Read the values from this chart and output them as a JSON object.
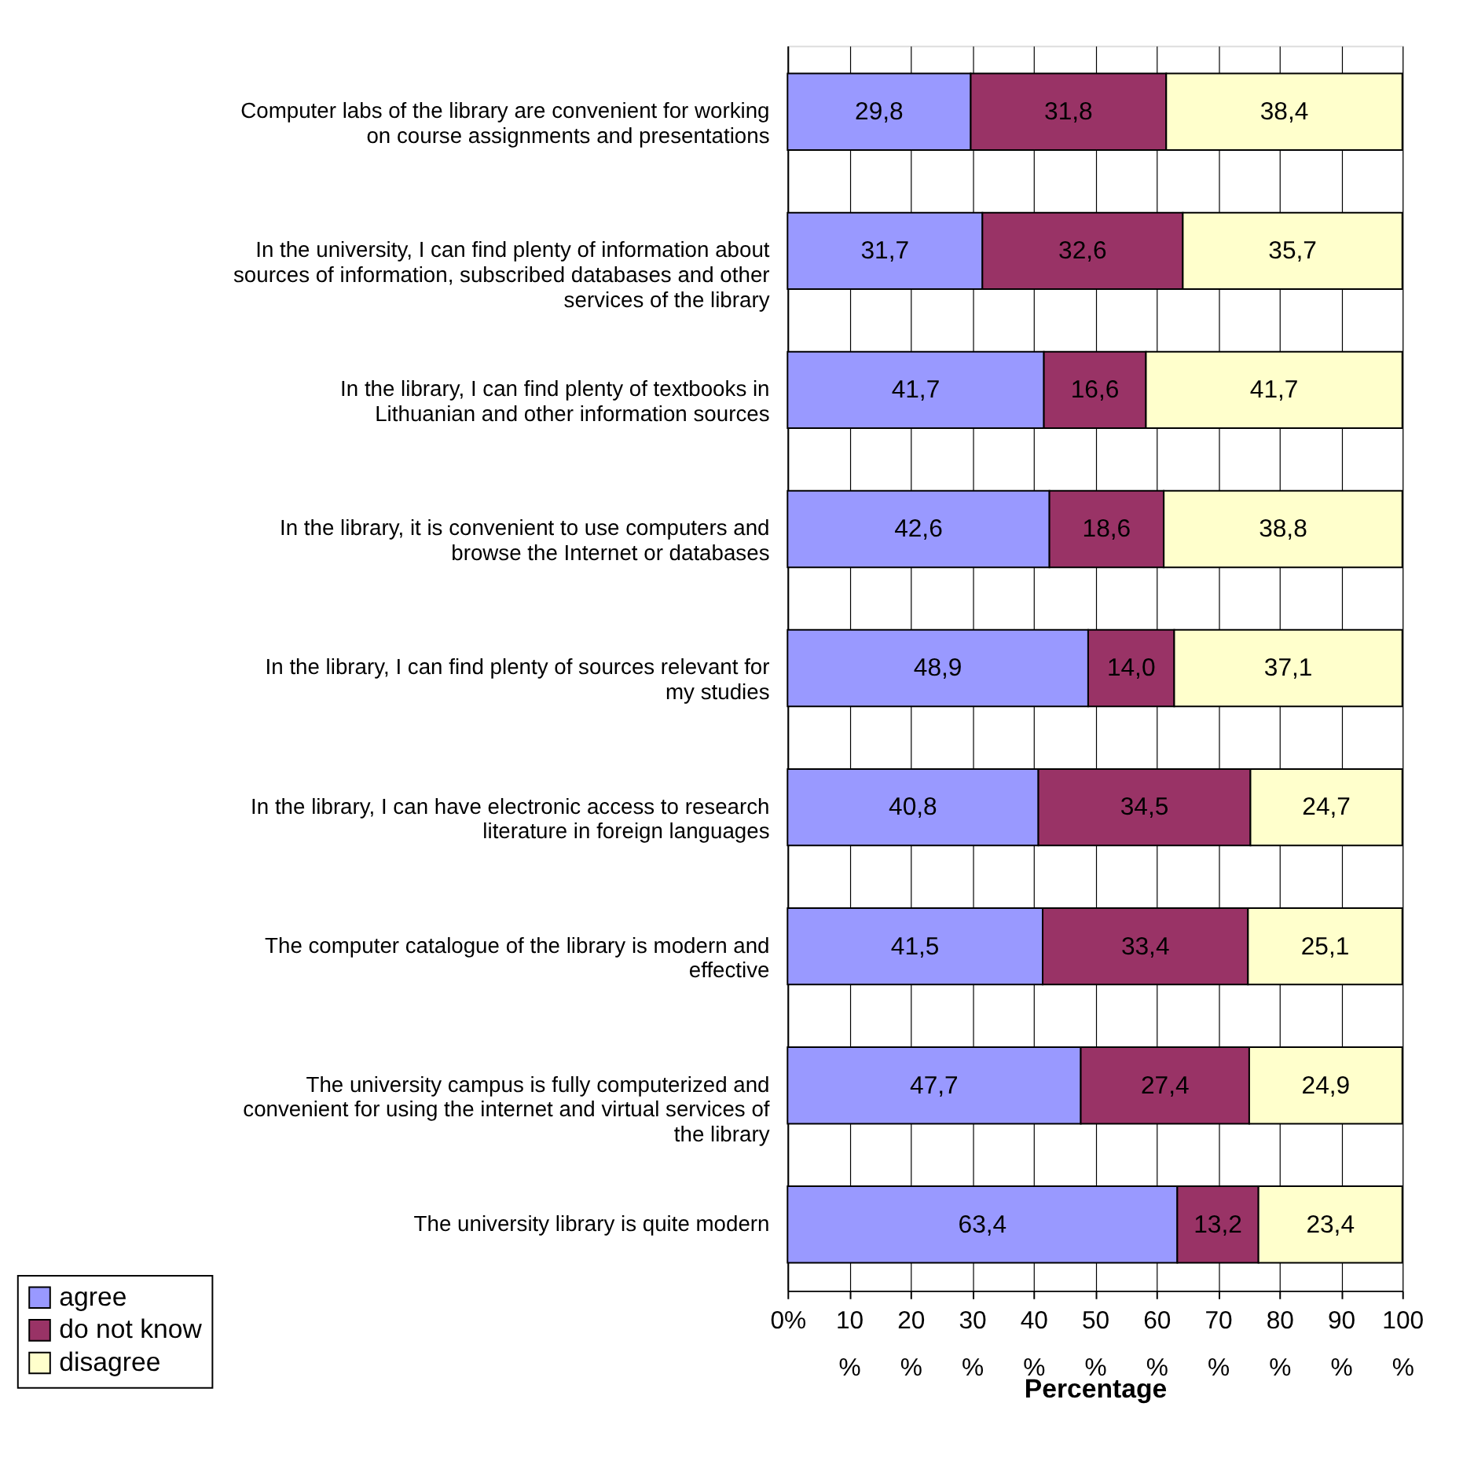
{
  "chart_data": {
    "type": "bar",
    "orientation": "horizontal",
    "stacked": true,
    "xlabel": "Percentage",
    "categories": [
      "Computer labs of the library are convenient for working on course assignments and presentations",
      "In the university, I can find plenty of information about sources of information, subscribed databases and other services of the library",
      "In the library, I can find plenty of textbooks in Lithuanian and other information sources",
      "In the library, it is convenient to use computers and browse the Internet or databases",
      "In the library, I can find plenty of sources relevant for my studies",
      "In the library, I can have electronic access to research literature in foreign languages",
      "The computer catalogue of the library is modern and effective",
      "The university campus is fully computerized and convenient for using the internet and virtual services of the library",
      "The university library is quite modern"
    ],
    "series": [
      {
        "name": "agree",
        "color": "#9999ff",
        "values": [
          29.8,
          31.7,
          41.7,
          42.6,
          48.9,
          40.8,
          41.5,
          47.7,
          63.4
        ],
        "value_labels": [
          "29,8",
          "31,7",
          "41,7",
          "42,6",
          "48,9",
          "40,8",
          "41,5",
          "47,7",
          "63,4"
        ]
      },
      {
        "name": "do not know",
        "color": "#993366",
        "values": [
          31.8,
          32.6,
          16.6,
          18.6,
          14.0,
          34.5,
          33.4,
          27.4,
          13.2
        ],
        "value_labels": [
          "31,8",
          "32,6",
          "16,6",
          "18,6",
          "14,0",
          "34,5",
          "33,4",
          "27,4",
          "13,2"
        ]
      },
      {
        "name": "disagree",
        "color": "#ffffcc",
        "values": [
          38.4,
          35.7,
          41.7,
          38.8,
          37.1,
          24.7,
          25.1,
          24.9,
          23.4
        ],
        "value_labels": [
          "38,4",
          "35,7",
          "41,7",
          "38,8",
          "37,1",
          "24,7",
          "25,1",
          "24,9",
          "23,4"
        ]
      }
    ],
    "xlim": [
      0,
      100
    ],
    "xticks": [
      {
        "value": 0,
        "label": "0%"
      },
      {
        "value": 10,
        "label": "10\n%"
      },
      {
        "value": 20,
        "label": "20\n%"
      },
      {
        "value": 30,
        "label": "30\n%"
      },
      {
        "value": 40,
        "label": "40\n%"
      },
      {
        "value": 50,
        "label": "50\n%"
      },
      {
        "value": 60,
        "label": "60\n%"
      },
      {
        "value": 70,
        "label": "70\n%"
      },
      {
        "value": 80,
        "label": "80\n%"
      },
      {
        "value": 90,
        "label": "90\n%"
      },
      {
        "value": 100,
        "label": "100\n%"
      }
    ],
    "grid": "x",
    "legend": "bottom left"
  }
}
